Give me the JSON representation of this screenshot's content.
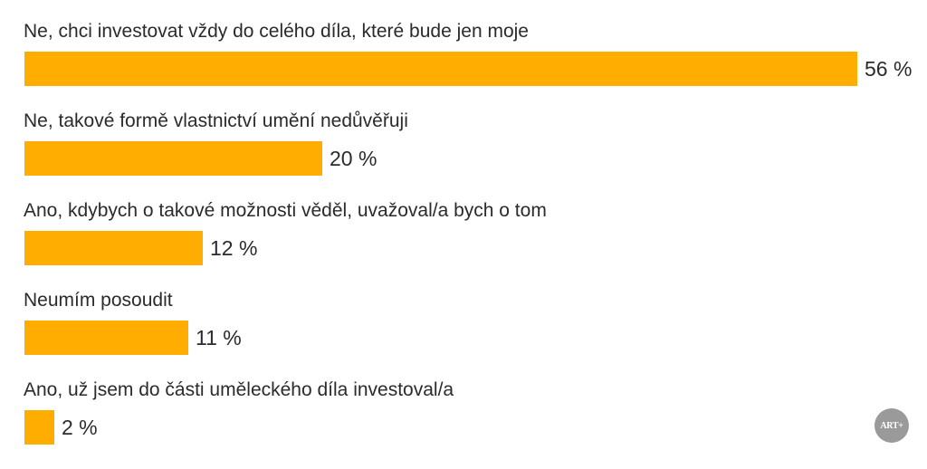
{
  "chart_data": {
    "type": "bar",
    "orientation": "horizontal",
    "categories": [
      "Ne, chci investovat vždy do celého díla, které bude jen moje",
      "Ne, takové formě vlastnictví umění nedůvěřuji",
      "Ano, kdybych o takové možnosti věděl, uvažoval/a bych o tom",
      "Neumím posoudit",
      "Ano, už jsem do části uměleckého díla investoval/a"
    ],
    "values": [
      56,
      20,
      12,
      11,
      2
    ],
    "value_labels": [
      "56 %",
      "20 %",
      "12 %",
      "11 %",
      "2 %"
    ],
    "unit": "%",
    "xlim": [
      0,
      56
    ],
    "grid": false,
    "legend": "none"
  },
  "colors": {
    "bar": "#FFAD00",
    "text": "#2b2b2b",
    "logo_bg": "#9a9a9a",
    "logo_text": "#ffffff"
  },
  "logo": {
    "text": "ART+",
    "icon": "art-plus-logo-icon"
  }
}
